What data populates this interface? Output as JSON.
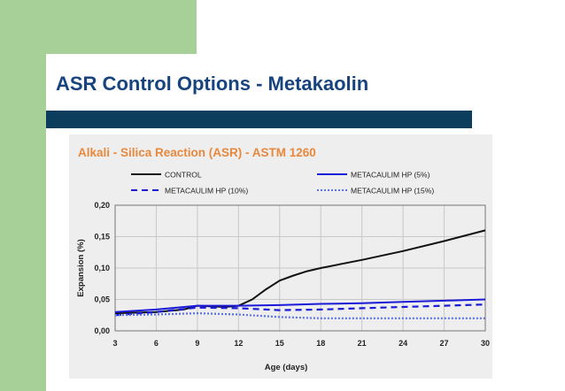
{
  "slide": {
    "title": "ASR Control Options - Metakaolin",
    "colors": {
      "sidebar": "#a7cf98",
      "title_text": "#17437e",
      "title_rule": "#0d3d5c",
      "chart_background": "#eeeeee",
      "chart_title_text": "#e8883c"
    }
  },
  "chart_data": {
    "type": "line",
    "title": "Alkali - Silica Reaction (ASR) - ASTM 1260",
    "xlabel": "Age (days)",
    "ylabel": "Expansion (%)",
    "xlim": [
      3,
      30
    ],
    "ylim": [
      0,
      0.2
    ],
    "x_ticks": [
      "3",
      "6",
      "9",
      "12",
      "15",
      "18",
      "21",
      "24",
      "27",
      "30"
    ],
    "y_ticks": [
      "0,00",
      "0,05",
      "0,10",
      "0,15",
      "0,20"
    ],
    "grid": true,
    "legend_position": "top",
    "series": [
      {
        "name": "CONTROL",
        "color": "#111111",
        "style": "solid",
        "points": [
          [
            3,
            0.028
          ],
          [
            6,
            0.03
          ],
          [
            8,
            0.034
          ],
          [
            9,
            0.04
          ],
          [
            11,
            0.038
          ],
          [
            12,
            0.04
          ],
          [
            13,
            0.05
          ],
          [
            14,
            0.066
          ],
          [
            15,
            0.08
          ],
          [
            16,
            0.088
          ],
          [
            17,
            0.095
          ],
          [
            18,
            0.1
          ],
          [
            21,
            0.113
          ],
          [
            24,
            0.127
          ],
          [
            27,
            0.143
          ],
          [
            30,
            0.16
          ]
        ]
      },
      {
        "name": "METACAULIM HP (5%)",
        "color": "#1a1ad8",
        "style": "solid",
        "points": [
          [
            3,
            0.03
          ],
          [
            6,
            0.034
          ],
          [
            9,
            0.04
          ],
          [
            12,
            0.04
          ],
          [
            15,
            0.041
          ],
          [
            18,
            0.043
          ],
          [
            21,
            0.044
          ],
          [
            24,
            0.046
          ],
          [
            27,
            0.048
          ],
          [
            30,
            0.05
          ]
        ]
      },
      {
        "name": "METACAULIM HP (10%)",
        "color": "#1a1ad8",
        "style": "dashed",
        "points": [
          [
            3,
            0.025
          ],
          [
            6,
            0.03
          ],
          [
            9,
            0.037
          ],
          [
            12,
            0.036
          ],
          [
            15,
            0.033
          ],
          [
            18,
            0.034
          ],
          [
            21,
            0.036
          ],
          [
            24,
            0.038
          ],
          [
            27,
            0.04
          ],
          [
            30,
            0.042
          ]
        ]
      },
      {
        "name": "METACAULIM HP (15%)",
        "color": "#5a72dc",
        "style": "dotted",
        "points": [
          [
            3,
            0.025
          ],
          [
            6,
            0.026
          ],
          [
            9,
            0.028
          ],
          [
            12,
            0.026
          ],
          [
            15,
            0.022
          ],
          [
            18,
            0.02
          ],
          [
            21,
            0.02
          ],
          [
            24,
            0.02
          ],
          [
            27,
            0.02
          ],
          [
            30,
            0.02
          ]
        ]
      }
    ]
  }
}
